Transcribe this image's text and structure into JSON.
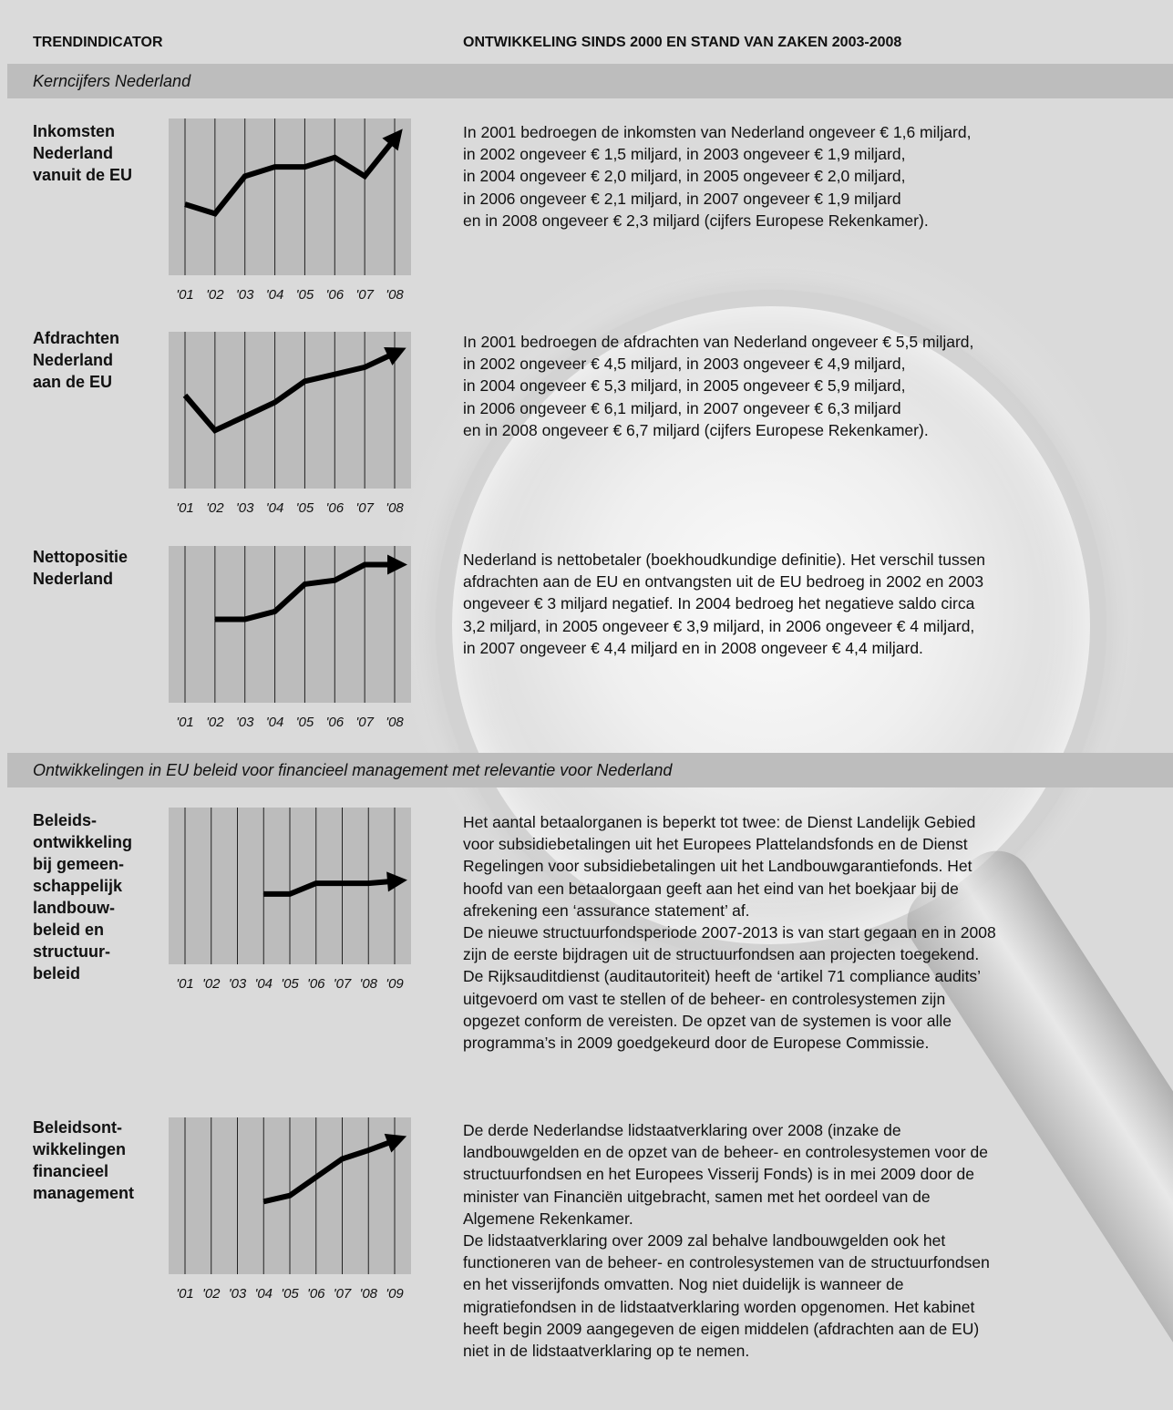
{
  "header": {
    "left": "TRENDINDICATOR",
    "right": "ONTWIKKELING SINDS 2000 EN STAND VAN ZAKEN 2003-2008"
  },
  "sections": [
    {
      "title": "Kerncijfers Nederland"
    },
    {
      "title": "Ontwikkelingen in EU beleid voor financieel management met relevantie voor Nederland"
    }
  ],
  "indicators": [
    {
      "label": "Inkomsten\nNederland\nvanuit de EU",
      "text": "In 2001 bedroegen de inkomsten van Nederland ongeveer € 1,6 miljard,\nin 2002 ongeveer € 1,5 miljard, in 2003 ongeveer € 1,9 miljard,\nin 2004 ongeveer € 2,0 miljard, in 2005 ongeveer € 2,0 miljard,\nin 2006 ongeveer € 2,1 miljard, in 2007 ongeveer € 1,9 miljard\nen in 2008 ongeveer € 2,3 miljard (cijfers Europese Rekenkamer)."
    },
    {
      "label": "Afdrachten\nNederland\naan de EU",
      "text": "In 2001 bedroegen de afdrachten van Nederland ongeveer € 5,5 miljard,\nin 2002 ongeveer € 4,5 miljard, in 2003 ongeveer € 4,9 miljard,\nin 2004 ongeveer € 5,3 miljard, in 2005 ongeveer € 5,9 miljard,\nin 2006 ongeveer €  6,1 miljard, in 2007 ongeveer € 6,3 miljard\nen in 2008 ongeveer € 6,7 miljard (cijfers Europese Rekenkamer)."
    },
    {
      "label": "Nettopositie\nNederland",
      "text": "Nederland is nettobetaler (boekhoudkundige definitie). Het verschil tussen\nafdrachten aan de EU en ontvangsten uit de EU bedroeg in 2002 en 2003\nongeveer € 3 miljard negatief. In 2004 bedroeg het negatieve saldo circa\n3,2 miljard, in 2005 ongeveer € 3,9 miljard, in 2006 ongeveer € 4 miljard,\nin 2007 ongeveer € 4,4 miljard en in 2008 ongeveer € 4,4 miljard."
    },
    {
      "label": "Beleids-\nontwikkeling\nbij gemeen-\nschappelijk\nlandbouw-\nbeleid en\nstructuur-\nbeleid",
      "text": "Het aantal betaalorganen is beperkt tot twee: de Dienst Landelijk Gebied\nvoor subsidiebetalingen uit het Europees Plattelandsfonds en de Dienst\nRegelingen voor subsidiebetalingen uit het Landbouwgarantiefonds. Het\nhoofd van een betaalorgaan geeft aan het eind van het boekjaar bij de\nafrekening een ‘assurance statement’ af.\nDe nieuwe structuurfondsperiode 2007-2013 is van start gegaan en in 2008\nzijn de eerste bijdragen uit de structuurfondsen aan projecten toegekend.\nDe Rijksauditdienst (auditautoriteit) heeft de ‘artikel 71 compliance audits’\nuitgevoerd om vast te stellen of de beheer- en controlesystemen zijn\nopgezet conform de vereisten. De opzet van de systemen is voor alle\nprogramma’s in 2009  goedgekeurd door de Europese Commissie."
    },
    {
      "label": "Beleidsont-\nwikkelingen\nfinancieel\nmanagement",
      "text": "De derde Nederlandse lidstaatverklaring over 2008 (inzake de\nlandbouwgelden en de opzet van de beheer- en controlesystemen voor de\nstructuurfondsen en het Europees Visserij Fonds) is in mei 2009 door de\nminister van Financiën uitgebracht, samen met het oordeel van de\nAlgemene Rekenkamer.\nDe lidstaatverklaring over 2009 zal behalve landbouwgelden ook het\nfunctioneren van de beheer- en controlesystemen van de structuurfondsen\nen het visserijfonds omvatten. Nog niet duidelijk is wanneer de\nmigratiefondsen in de lidstaatverklaring worden opgenomen. Het kabinet\nheeft begin 2009 aangegeven de eigen middelen (afdrachten aan de EU)\nniet in de lidstaatverklaring op te nemen."
    }
  ],
  "chart_data": [
    {
      "type": "line",
      "x": [
        "'01",
        "'02",
        "'03",
        "'04",
        "'05",
        "'06",
        "'07",
        "'08"
      ],
      "series": [
        {
          "values": [
            1.6,
            1.5,
            1.9,
            2.0,
            2.0,
            2.1,
            1.9,
            2.3
          ]
        }
      ],
      "ylim": [
        0.9,
        2.4
      ],
      "end_arrow": true
    },
    {
      "type": "line",
      "x": [
        "'01",
        "'02",
        "'03",
        "'04",
        "'05",
        "'06",
        "'07",
        "'08"
      ],
      "series": [
        {
          "values": [
            5.5,
            4.5,
            4.9,
            5.3,
            5.9,
            6.1,
            6.3,
            6.7
          ]
        }
      ],
      "ylim": [
        3.0,
        7.0
      ],
      "end_arrow": true
    },
    {
      "type": "line",
      "x": [
        "'01",
        "'02",
        "'03",
        "'04",
        "'05",
        "'06",
        "'07",
        "'08"
      ],
      "series": [
        {
          "values": [
            null,
            3.0,
            3.0,
            3.2,
            3.9,
            4.0,
            4.4,
            4.4
          ]
        }
      ],
      "ylim": [
        1.0,
        4.6
      ],
      "end_arrow": true
    },
    {
      "type": "line",
      "x": [
        "'01",
        "'02",
        "'03",
        "'04",
        "'05",
        "'06",
        "'07",
        "'08",
        "'09"
      ],
      "series": [
        {
          "values": [
            null,
            null,
            null,
            1.0,
            1.0,
            2.0,
            2.0,
            2.0,
            2.2
          ]
        }
      ],
      "ylim": [
        -5.0,
        8.0
      ],
      "end_arrow": true
    },
    {
      "type": "line",
      "x": [
        "'01",
        "'02",
        "'03",
        "'04",
        "'05",
        "'06",
        "'07",
        "'08",
        "'09"
      ],
      "series": [
        {
          "values": [
            null,
            null,
            null,
            1.0,
            1.5,
            3.0,
            4.5,
            5.2,
            6.0
          ]
        }
      ],
      "ylim": [
        -4.5,
        7.0
      ],
      "end_arrow": true
    }
  ]
}
